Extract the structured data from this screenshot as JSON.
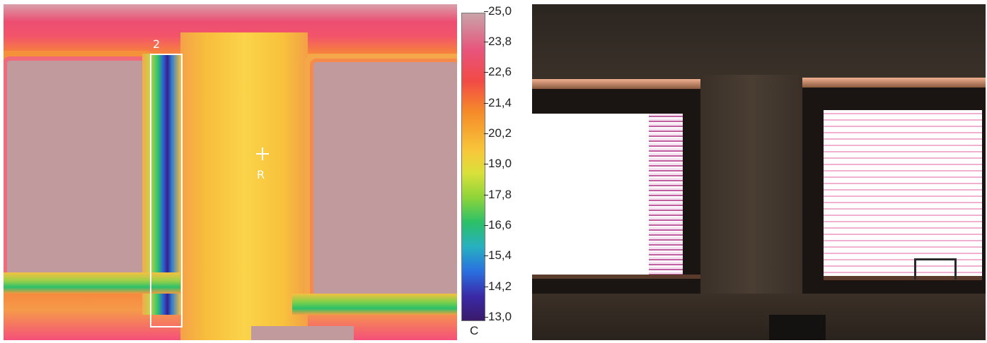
{
  "thermal": {
    "marker_labels": {
      "rect": "2",
      "point": "R"
    }
  },
  "scale": {
    "ticks": [
      "25,0",
      "23,8",
      "22,6",
      "21,4",
      "20,2",
      "19,0",
      "17,8",
      "16,6",
      "15,4",
      "14,2",
      "13,0"
    ],
    "unit": "C"
  },
  "colors": {
    "scale_top": "#c9a3a8",
    "scale_bottom": "#3a1a6a"
  }
}
